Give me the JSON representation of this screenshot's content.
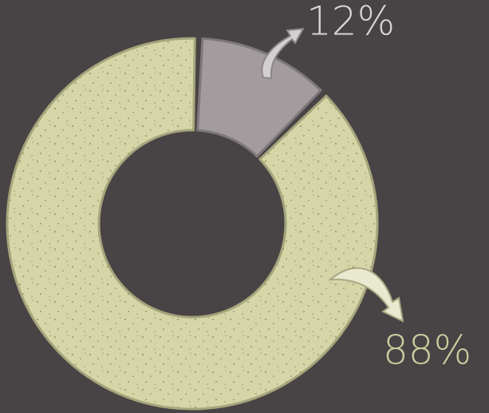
{
  "chart_data": {
    "type": "donut",
    "values": [
      12,
      88
    ],
    "value_labels": [
      "12%",
      "88%"
    ],
    "colors": [
      "#a29c9e",
      "#d5d5a8"
    ]
  }
}
